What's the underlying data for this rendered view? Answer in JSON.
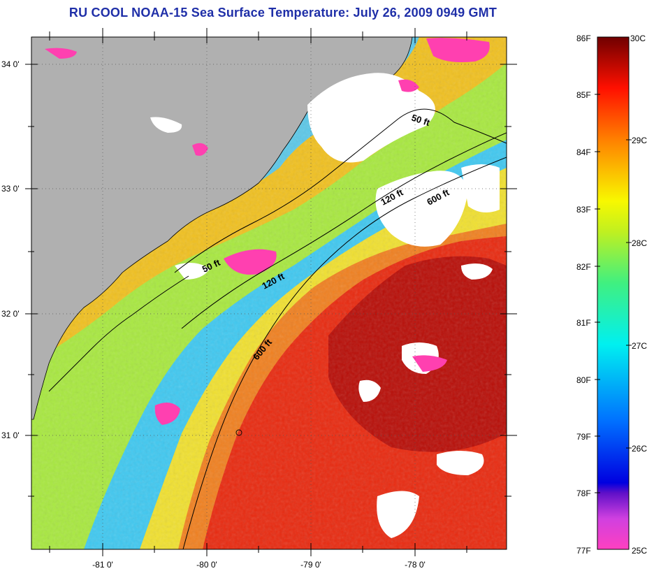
{
  "title": "RU COOL  NOAA-15  Sea Surface Temperature:  July 26, 2009 0949 GMT",
  "axes": {
    "lat_labels": [
      "34 0'",
      "33 0'",
      "32 0'",
      "31 0'"
    ],
    "lon_labels": [
      "-81 0'",
      "-80 0'",
      "-79 0'",
      "-78 0'"
    ]
  },
  "contours": {
    "ft50_upper": "50 ft",
    "ft50_lower": "50 ft",
    "ft120_upper": "120 ft",
    "ft120_lower": "120 ft",
    "ft600_upper": "600 ft",
    "ft600_lower": "600 ft"
  },
  "colorbar": {
    "fahrenheit": [
      "86F",
      "85F",
      "84F",
      "83F",
      "82F",
      "81F",
      "80F",
      "79F",
      "78F",
      "77F"
    ],
    "celsius": [
      "30C",
      "29C",
      "28C",
      "27C",
      "26C",
      "25C"
    ]
  },
  "colors": {
    "title": "#1f2fa8",
    "land": "#b0b0b0",
    "cloud": "#ffffff",
    "warm_core": "#d81a0a",
    "shelf_cool": "#38b8f0"
  }
}
